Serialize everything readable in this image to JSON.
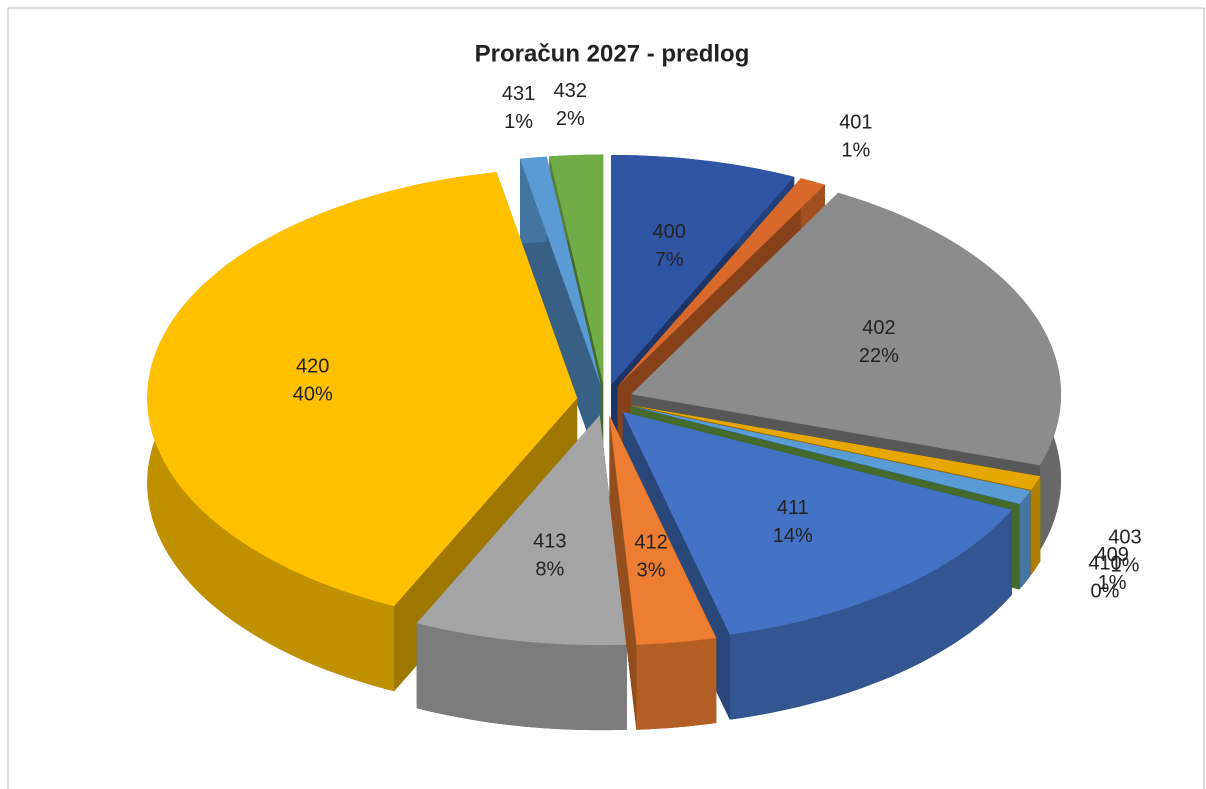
{
  "chart_data": {
    "type": "pie",
    "title": "Proračun 2027 - predlog",
    "categories": [
      "400",
      "401",
      "402",
      "403",
      "409",
      "410",
      "411",
      "412",
      "413",
      "420",
      "431",
      "432"
    ],
    "values": [
      7,
      1,
      22,
      1,
      1,
      0,
      14,
      3,
      8,
      40,
      1,
      2
    ],
    "value_labels": [
      "7%",
      "1%",
      "22%",
      "1%",
      "1%",
      "0%",
      "14%",
      "3%",
      "8%",
      "40%",
      "1%",
      "2%"
    ],
    "colors": [
      "#2f55a4",
      "#d8692a",
      "#8c8c8c",
      "#e6a800",
      "#5b9bd5",
      "#70ad47",
      "#4472c4",
      "#ed7d31",
      "#a5a5a5",
      "#ffc000",
      "#5b9bd5",
      "#70ad47"
    ]
  }
}
